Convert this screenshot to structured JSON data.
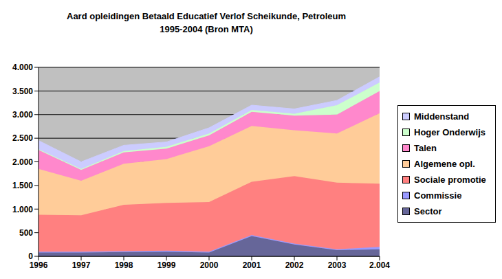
{
  "chart_data": {
    "type": "area",
    "title": "Aard opleidingen Betaald Educatief Verlof Scheikunde, Petroleum\n1995-2004 (Bron MTA)",
    "categories": [
      "1996",
      "1997",
      "1998",
      "1999",
      "2000",
      "2001",
      "2002",
      "2003",
      "2.004"
    ],
    "series": [
      {
        "name": "Sector",
        "color": "#666699",
        "values": [
          80,
          80,
          90,
          100,
          80,
          430,
          250,
          130,
          150
        ]
      },
      {
        "name": "Commissie",
        "color": "#9999ff",
        "values": [
          20,
          20,
          20,
          20,
          20,
          20,
          20,
          20,
          50
        ]
      },
      {
        "name": "Sociale promotie",
        "color": "#ff8080",
        "values": [
          780,
          770,
          980,
          1010,
          1050,
          1130,
          1430,
          1410,
          1340
        ]
      },
      {
        "name": "Algemene opl.",
        "color": "#ffcc99",
        "values": [
          970,
          730,
          870,
          930,
          1180,
          1180,
          970,
          1040,
          1490
        ]
      },
      {
        "name": "Talen",
        "color": "#ff88cc",
        "values": [
          400,
          230,
          240,
          220,
          230,
          300,
          310,
          400,
          470
        ]
      },
      {
        "name": "Hoger Onderwijs",
        "color": "#ccffcc",
        "values": [
          20,
          20,
          30,
          40,
          40,
          40,
          40,
          200,
          180
        ]
      },
      {
        "name": "Middenstand",
        "color": "#ccccff",
        "values": [
          180,
          150,
          120,
          100,
          120,
          100,
          100,
          100,
          120
        ]
      }
    ],
    "ylim": [
      0,
      4000
    ],
    "yticks": [
      0,
      500,
      {
        "value": 1000,
        "label": "1.000"
      },
      {
        "value": 1500,
        "label": "1.500"
      },
      {
        "value": 2000,
        "label": "2.000"
      },
      {
        "value": 2500,
        "label": "2.500"
      },
      {
        "value": 3000,
        "label": "3.000"
      },
      {
        "value": 3500,
        "label": "3.500"
      },
      {
        "value": 4000,
        "label": "4.000"
      }
    ],
    "grid": true,
    "stacked": true,
    "legend": "right"
  }
}
